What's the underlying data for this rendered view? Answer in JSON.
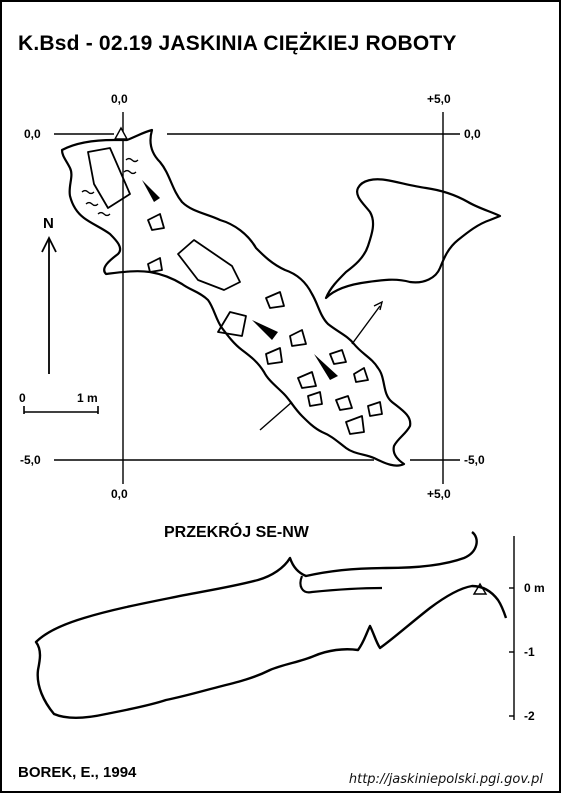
{
  "header": {
    "title": "K.Bsd - 02.19  JASKINIA CIĘŻKIEJ ROBOTY"
  },
  "plan": {
    "north_label": "N",
    "scale": {
      "start": "0",
      "end": "1 m"
    },
    "grid_labels": {
      "top_left_x": "0,0",
      "top_right_x": "+5,0",
      "bottom_left_x": "0,0",
      "bottom_right_x": "+5,0",
      "left_top_y": "0,0",
      "right_top_y": "0,0",
      "left_bottom_y": "-5,0",
      "right_bottom_y": "-5,0"
    }
  },
  "section": {
    "title": "PRZEKRÓJ SE-NW",
    "depth_scale": [
      "0 m",
      "-1",
      "-2"
    ]
  },
  "footer": {
    "author": "BOREK, E., 1994",
    "source": "http://jaskiniepolski.pgi.gov.pl"
  }
}
